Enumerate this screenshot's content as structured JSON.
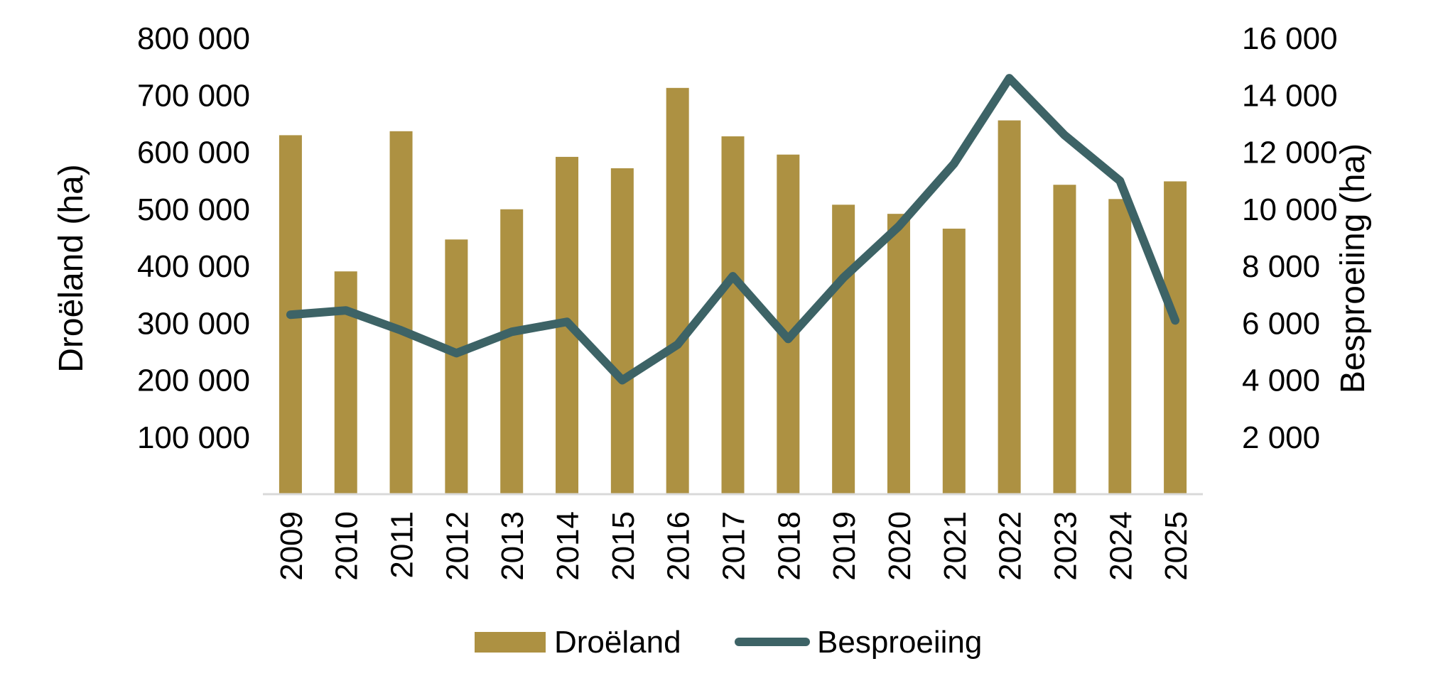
{
  "chart_data": {
    "type": "bar+line",
    "title": "",
    "categories": [
      "2009",
      "2010",
      "2011",
      "2012",
      "2013",
      "2014",
      "2015",
      "2016",
      "2017",
      "2018",
      "2019",
      "2020",
      "2021",
      "2022",
      "2023",
      "2024",
      "2025"
    ],
    "series": [
      {
        "name": "Droëland",
        "type": "bar",
        "axis": "left",
        "color": "#AD9142",
        "values": [
          630000,
          391000,
          637000,
          447000,
          500000,
          592000,
          572000,
          713000,
          628000,
          596000,
          508000,
          492000,
          466000,
          656000,
          543000,
          518000,
          549000
        ]
      },
      {
        "name": "Besproeiing",
        "type": "line",
        "axis": "right",
        "color": "#3D6366",
        "values": [
          6300,
          6450,
          5750,
          4950,
          5700,
          6050,
          4000,
          5250,
          7650,
          5450,
          7600,
          9400,
          11600,
          14600,
          12600,
          11000,
          6100
        ]
      }
    ],
    "ylabel_left": "Droëland (ha)",
    "ylabel_right": "Besproeiing (ha)",
    "ylim_left": [
      0,
      800000
    ],
    "ylim_right": [
      0,
      16000
    ],
    "yticks_left": [
      "100 000",
      "200 000",
      "300 000",
      "400 000",
      "500 000",
      "600 000",
      "700 000",
      "800 000"
    ],
    "yticks_right": [
      "2 000",
      "4 000",
      "6 000",
      "8 000",
      "10 000",
      "12 000",
      "14 000",
      "16 000"
    ],
    "grid": false,
    "legend_position": "bottom-center",
    "legend": [
      "Droëland",
      "Besproeiing"
    ],
    "axis_line_color": "#D9D9D9"
  }
}
